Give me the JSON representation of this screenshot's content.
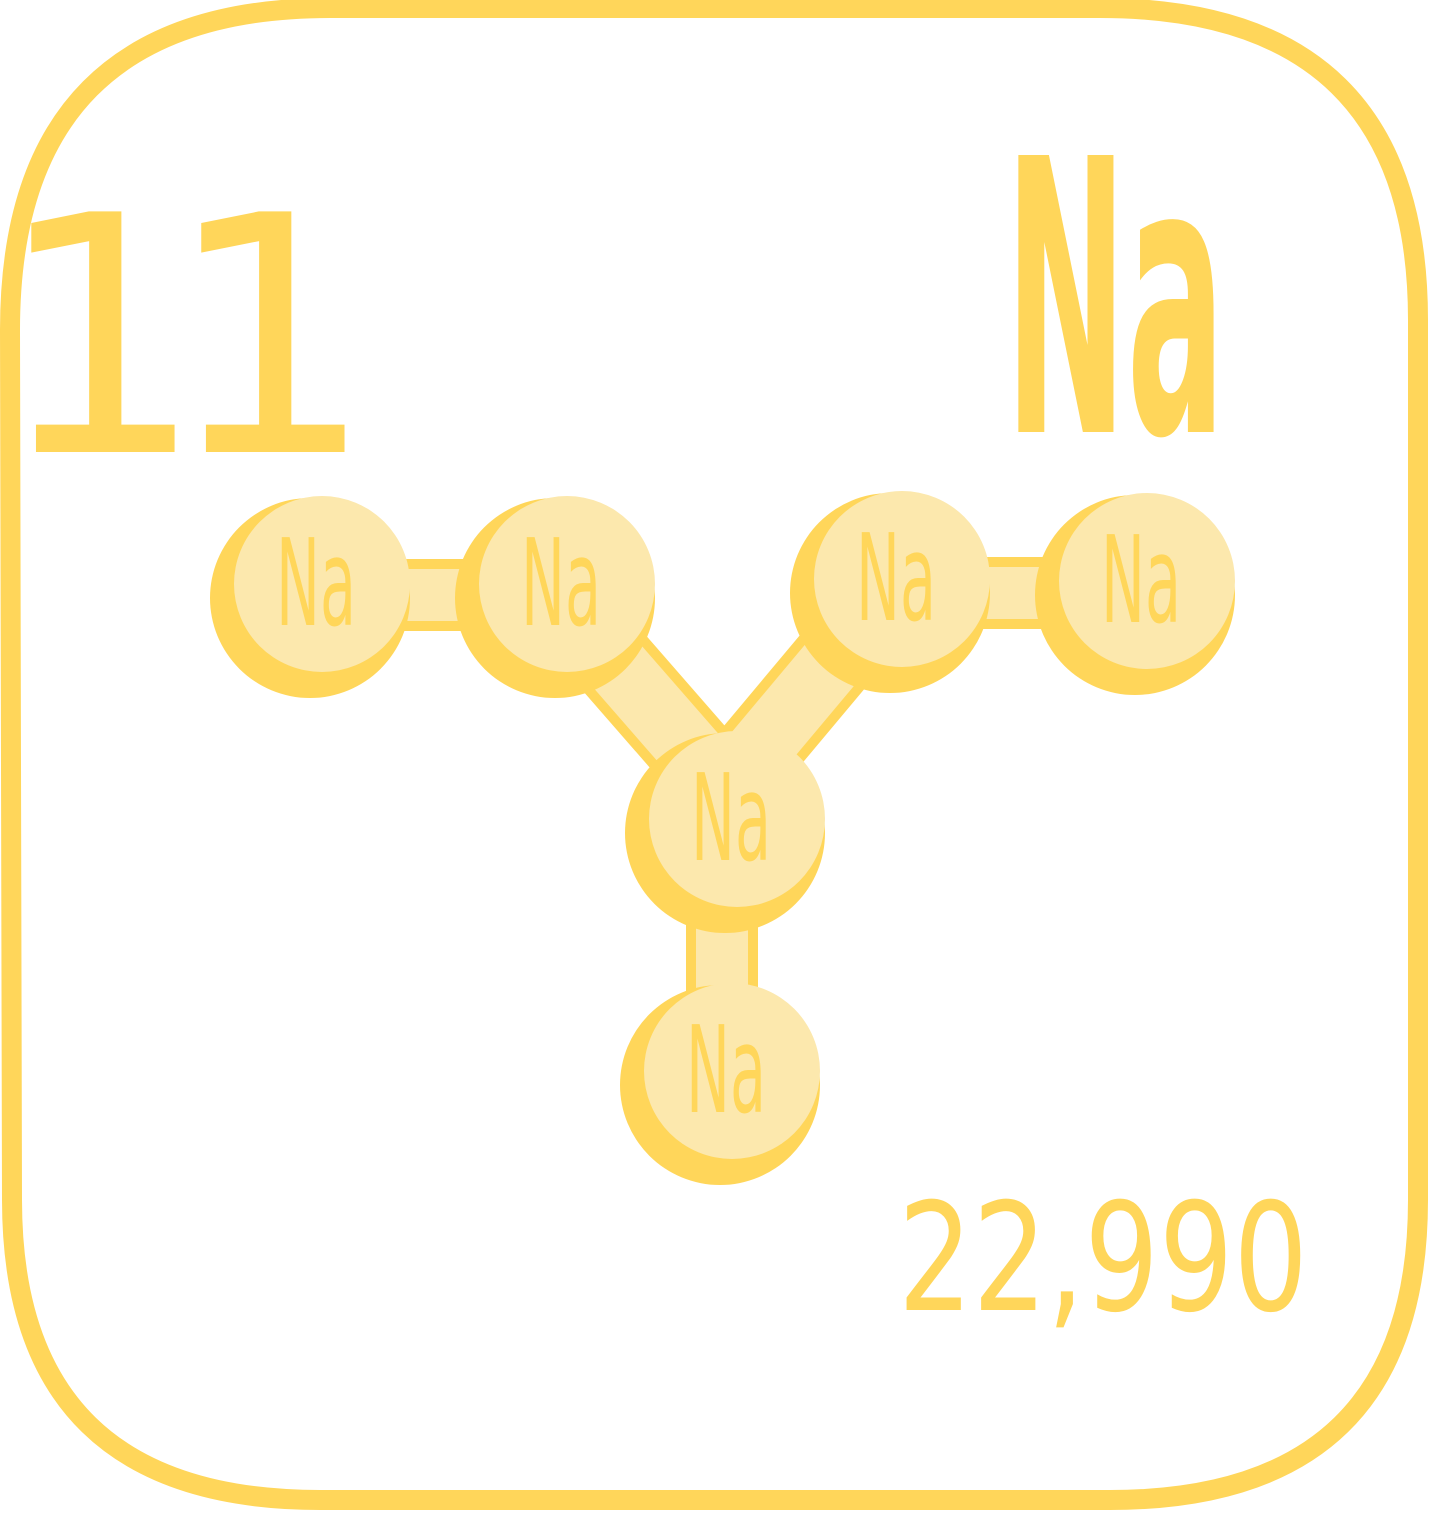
{
  "element": {
    "atomic_number": "11",
    "symbol": "Na",
    "atomic_mass": "22,990"
  },
  "molecule": {
    "atom_label": "Na",
    "atoms": [
      {
        "id": "left-outer"
      },
      {
        "id": "left-inner"
      },
      {
        "id": "right-inner"
      },
      {
        "id": "right-outer"
      },
      {
        "id": "center"
      },
      {
        "id": "bottom"
      }
    ]
  },
  "colors": {
    "accent": "#FFD65A",
    "atom_fill": "#FCE8AD",
    "background": "#FFFFFF"
  }
}
